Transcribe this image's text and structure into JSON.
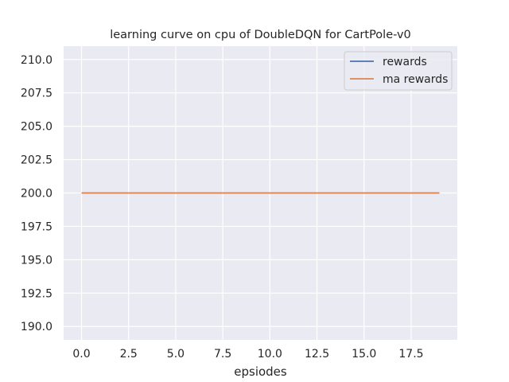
{
  "chart_data": {
    "type": "line",
    "title": "learning curve on cpu of DoubleDQN for CartPole-v0",
    "xlabel": "epsiodes",
    "ylabel": "",
    "xlim": [
      -0.95,
      19.95
    ],
    "ylim": [
      189.0,
      211.0
    ],
    "x_ticks": [
      0.0,
      2.5,
      5.0,
      7.5,
      10.0,
      12.5,
      15.0,
      17.5
    ],
    "x_tick_labels": [
      "0.0",
      "2.5",
      "5.0",
      "7.5",
      "10.0",
      "12.5",
      "15.0",
      "17.5"
    ],
    "y_ticks": [
      190.0,
      192.5,
      195.0,
      197.5,
      200.0,
      202.5,
      205.0,
      207.5,
      210.0
    ],
    "y_tick_labels": [
      "190.0",
      "192.5",
      "195.0",
      "197.5",
      "200.0",
      "202.5",
      "205.0",
      "207.5",
      "210.0"
    ],
    "grid": true,
    "legend_position": "top-right",
    "x": [
      0,
      1,
      2,
      3,
      4,
      5,
      6,
      7,
      8,
      9,
      10,
      11,
      12,
      13,
      14,
      15,
      16,
      17,
      18,
      19
    ],
    "series": [
      {
        "name": "rewards",
        "color": "#4c72b0",
        "values": [
          200,
          200,
          200,
          200,
          200,
          200,
          200,
          200,
          200,
          200,
          200,
          200,
          200,
          200,
          200,
          200,
          200,
          200,
          200,
          200
        ]
      },
      {
        "name": "ma rewards",
        "color": "#dd8452",
        "values": [
          200,
          200,
          200,
          200,
          200,
          200,
          200,
          200,
          200,
          200,
          200,
          200,
          200,
          200,
          200,
          200,
          200,
          200,
          200,
          200
        ]
      }
    ],
    "background_color": "#eaeaf2",
    "grid_color": "#ffffff"
  }
}
